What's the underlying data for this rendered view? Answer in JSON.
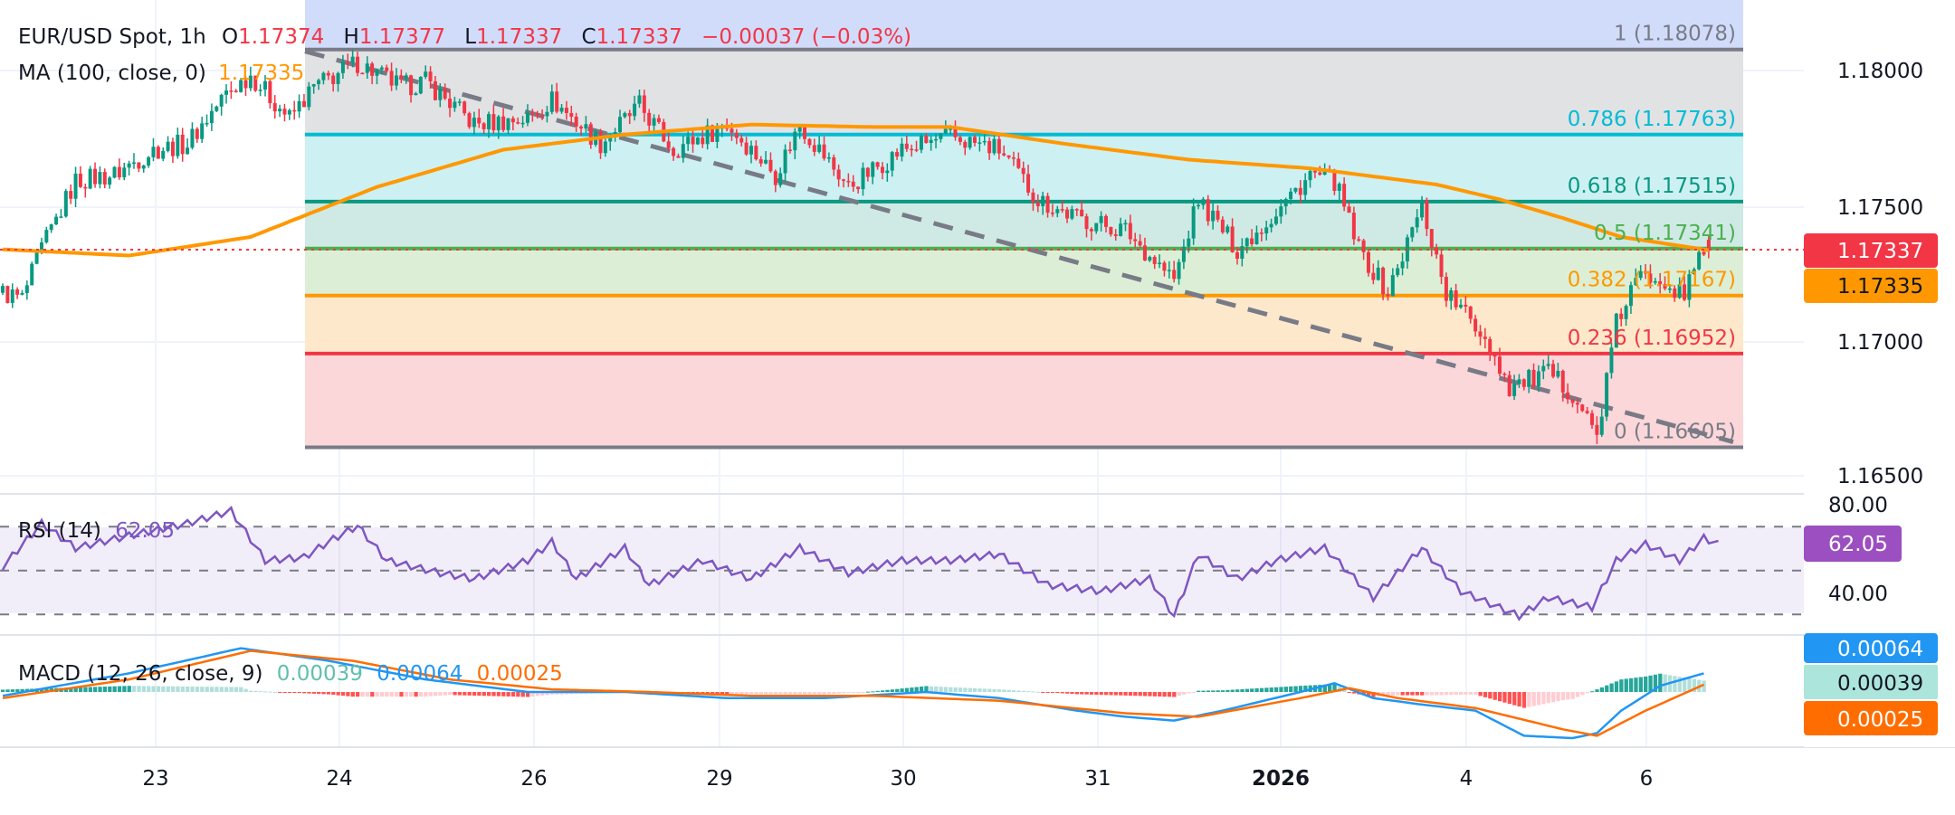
{
  "legend": {
    "symbol": "EUR/USD Spot, 1h",
    "o_label": "O",
    "o": "1.17374",
    "h_label": "H",
    "h": "1.17377",
    "l_label": "L",
    "l": "1.17337",
    "c_label": "C",
    "c": "1.17337",
    "change": "−0.00037 (−0.03%)",
    "ma_label": "MA (100, close, 0)",
    "ma_value": "1.17335"
  },
  "fib": [
    {
      "label": "1 (1.18078)",
      "price": 1.18078,
      "color": "#787b86",
      "fill": "#d1dcfb"
    },
    {
      "label": "0.786 (1.17763)",
      "price": 1.17763,
      "color": "#00bcd4",
      "fill": "#e1e2e4"
    },
    {
      "label": "0.618 (1.17515)",
      "price": 1.17515,
      "color": "#089981",
      "fill": "#cdf0f3"
    },
    {
      "label": "0.5 (1.17341)",
      "price": 1.17341,
      "color": "#4caf50",
      "fill": "#cfeae4"
    },
    {
      "label": "0.382 (1.17167)",
      "price": 1.17167,
      "color": "#ff9800",
      "fill": "#dcefd6"
    },
    {
      "label": "0.236 (1.16952)",
      "price": 1.16952,
      "color": "#f23645",
      "fill": "#fde8cc"
    },
    {
      "label": "0 (1.16605)",
      "price": 1.16605,
      "color": "#787b86",
      "fill": "#fbd7da"
    }
  ],
  "price_axis": [
    "1.18000",
    "1.17500",
    "1.17000",
    "1.16500"
  ],
  "badges": {
    "last": "1.17337",
    "ma": "1.17335",
    "rsi": "62.05",
    "macd": "0.00064",
    "hist": "0.00039",
    "signal": "0.00025"
  },
  "rsi": {
    "label": "RSI (14)",
    "value": "62.05",
    "axis": [
      "80.00",
      "40.00"
    ]
  },
  "macd": {
    "label": "MACD (12, 26, close, 9)",
    "hist": "0.00039",
    "macd": "0.00064",
    "signal": "0.00025"
  },
  "time_axis": [
    "23",
    "24",
    "26",
    "29",
    "30",
    "31",
    "2026",
    "4",
    "6"
  ],
  "colors": {
    "up": "#089981",
    "down": "#f23645",
    "ma": "#ff9800",
    "rsi": "#7e57c2",
    "macd": "#2196f3",
    "signal": "#ff6d00"
  },
  "chart_data": {
    "type": "candlestick",
    "timeframe": "1h",
    "price_path": [
      [
        0,
        1.17177
      ],
      [
        4,
        1.17154
      ],
      [
        8,
        1.17338
      ],
      [
        15,
        1.17592
      ],
      [
        23,
        1.17615
      ],
      [
        31,
        1.17707
      ],
      [
        38,
        1.1773
      ],
      [
        46,
        1.17915
      ],
      [
        51,
        1.17984
      ],
      [
        59,
        1.17823
      ],
      [
        64,
        1.17938
      ],
      [
        73,
        1.1803
      ],
      [
        82,
        1.17938
      ],
      [
        87,
        1.17961
      ],
      [
        97,
        1.178
      ],
      [
        108,
        1.17823
      ],
      [
        113,
        1.17892
      ],
      [
        123,
        1.1773
      ],
      [
        131,
        1.17869
      ],
      [
        138,
        1.17707
      ],
      [
        149,
        1.178
      ],
      [
        159,
        1.17615
      ],
      [
        164,
        1.178
      ],
      [
        174,
        1.17569
      ],
      [
        185,
        1.17707
      ],
      [
        195,
        1.17754
      ],
      [
        205,
        1.17707
      ],
      [
        213,
        1.17523
      ],
      [
        221,
        1.17454
      ],
      [
        231,
        1.17408
      ],
      [
        241,
        1.17223
      ],
      [
        246,
        1.17523
      ],
      [
        254,
        1.17338
      ],
      [
        262,
        1.17477
      ],
      [
        269,
        1.17615
      ],
      [
        274,
        1.17592
      ],
      [
        279,
        1.17338
      ],
      [
        285,
        1.17177
      ],
      [
        292,
        1.175
      ],
      [
        297,
        1.17177
      ],
      [
        305,
        1.17015
      ],
      [
        310,
        1.1683
      ],
      [
        318,
        1.16877
      ],
      [
        323,
        1.16808
      ],
      [
        328,
        1.16646
      ],
      [
        332,
        1.17061
      ],
      [
        336,
        1.17223
      ],
      [
        341,
        1.17246
      ],
      [
        346,
        1.17154
      ],
      [
        349,
        1.17338
      ],
      [
        351,
        1.17337
      ]
    ],
    "ma100": [
      [
        0,
        1.17338
      ],
      [
        26,
        1.17315
      ],
      [
        51,
        1.17384
      ],
      [
        77,
        1.17569
      ],
      [
        103,
        1.17707
      ],
      [
        128,
        1.17763
      ],
      [
        154,
        1.178
      ],
      [
        179,
        1.17791
      ],
      [
        195,
        1.17791
      ],
      [
        218,
        1.1773
      ],
      [
        244,
        1.1767
      ],
      [
        269,
        1.17638
      ],
      [
        295,
        1.17578
      ],
      [
        308,
        1.17523
      ],
      [
        321,
        1.17454
      ],
      [
        333,
        1.17384
      ],
      [
        351,
        1.17335
      ]
    ],
    "rsi": [
      [
        0,
        51.8
      ],
      [
        8,
        71.5
      ],
      [
        15,
        60.3
      ],
      [
        26,
        65.9
      ],
      [
        38,
        71.5
      ],
      [
        47,
        77.2
      ],
      [
        54,
        54.6
      ],
      [
        62,
        56
      ],
      [
        67,
        63.1
      ],
      [
        73,
        70.4
      ],
      [
        79,
        54.6
      ],
      [
        90,
        48.9
      ],
      [
        97,
        46.2
      ],
      [
        108,
        54.6
      ],
      [
        113,
        63.1
      ],
      [
        118,
        46.2
      ],
      [
        128,
        60.3
      ],
      [
        133,
        43.4
      ],
      [
        144,
        54.6
      ],
      [
        154,
        46.2
      ],
      [
        164,
        60.3
      ],
      [
        174,
        48.9
      ],
      [
        185,
        54.6
      ],
      [
        195,
        54.6
      ],
      [
        205,
        57.5
      ],
      [
        215,
        43.4
      ],
      [
        226,
        40.6
      ],
      [
        236,
        46.2
      ],
      [
        241,
        29.3
      ],
      [
        246,
        57.5
      ],
      [
        254,
        46.2
      ],
      [
        262,
        54.6
      ],
      [
        272,
        60.3
      ],
      [
        282,
        37.7
      ],
      [
        292,
        60.3
      ],
      [
        300,
        40.6
      ],
      [
        312,
        29.3
      ],
      [
        318,
        37.7
      ],
      [
        327,
        33.2
      ],
      [
        332,
        54.6
      ],
      [
        338,
        62
      ],
      [
        345,
        54.6
      ],
      [
        350,
        64.8
      ],
      [
        353,
        62.05
      ]
    ],
    "macd": [
      [
        0,
        -0.00013
      ],
      [
        26,
        0.00064
      ],
      [
        49,
        0.0015
      ],
      [
        67,
        0.00107
      ],
      [
        87,
        0.00043
      ],
      [
        108,
        0
      ],
      [
        128,
        0
      ],
      [
        149,
        -0.00021
      ],
      [
        169,
        -0.00021
      ],
      [
        190,
        0
      ],
      [
        205,
        -0.00021
      ],
      [
        221,
        -0.00064
      ],
      [
        231,
        -0.00085
      ],
      [
        241,
        -0.00098
      ],
      [
        251,
        -0.00064
      ],
      [
        267,
        0
      ],
      [
        274,
        0.0003
      ],
      [
        282,
        -0.00021
      ],
      [
        292,
        -0.00043
      ],
      [
        303,
        -0.00064
      ],
      [
        313,
        -0.0015
      ],
      [
        323,
        -0.00158
      ],
      [
        328,
        -0.00141
      ],
      [
        333,
        -0.00064
      ],
      [
        341,
        0.00021
      ],
      [
        350,
        0.00064
      ]
    ],
    "signal": [
      [
        0,
        -0.00021
      ],
      [
        26,
        0.00043
      ],
      [
        51,
        0.00141
      ],
      [
        72,
        0.00107
      ],
      [
        92,
        0.00043
      ],
      [
        113,
        9e-05
      ],
      [
        133,
        0
      ],
      [
        154,
        -0.00013
      ],
      [
        179,
        -0.00013
      ],
      [
        205,
        -0.0003
      ],
      [
        231,
        -0.00073
      ],
      [
        246,
        -0.00085
      ],
      [
        267,
        -0.00021
      ],
      [
        277,
        0.00013
      ],
      [
        287,
        -0.00021
      ],
      [
        303,
        -0.00055
      ],
      [
        321,
        -0.00128
      ],
      [
        328,
        -0.0015
      ],
      [
        338,
        -0.00064
      ],
      [
        350,
        0.00025
      ]
    ],
    "trendline": [
      [
        1.18078,
        0
      ],
      [
        1.16605,
        1
      ]
    ],
    "ylim": [
      1.1645,
      1.1825
    ],
    "rsi_levels": [
      70,
      50,
      30
    ]
  }
}
